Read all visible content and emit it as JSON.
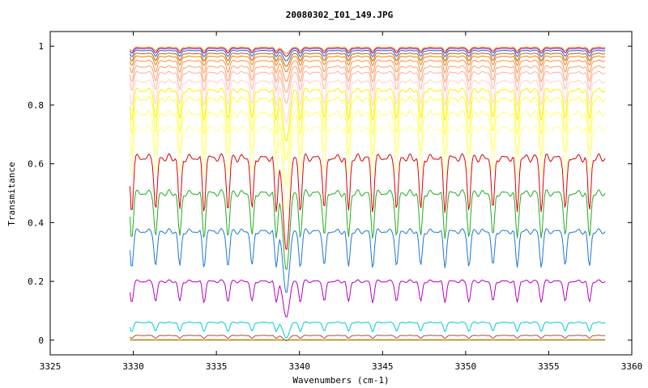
{
  "chart_data": {
    "type": "line",
    "title": "20080302_I01_149.JPG",
    "xlabel": "Wavenumbers (cm-1)",
    "ylabel": "Transmitance",
    "xlim": [
      3325,
      3360
    ],
    "ylim": [
      -0.05,
      1.05
    ],
    "x_ticks": [
      "3325",
      "3330",
      "3335",
      "3340",
      "3345",
      "3350",
      "3355",
      "3360"
    ],
    "y_ticks": [
      "0",
      "0.2",
      "0.4",
      "0.6",
      "0.8",
      "1"
    ],
    "grid": false,
    "legend": "none",
    "x_range_data": [
      3329.8,
      3358.4
    ],
    "series": [
      {
        "color": "#2e8b57",
        "baseline": 0.0,
        "depth": 0.0
      },
      {
        "color": "#ff7f00",
        "baseline": 0.002,
        "depth": 0.001
      },
      {
        "color": "#a0522d",
        "baseline": 0.016,
        "depth": 0.01
      },
      {
        "color": "#00cccc",
        "baseline": 0.06,
        "depth": 0.03
      },
      {
        "color": "#b000c0",
        "baseline": 0.2,
        "depth": 0.07
      },
      {
        "color": "#1f77d4",
        "baseline": 0.37,
        "depth": 0.12
      },
      {
        "color": "#22aa22",
        "baseline": 0.5,
        "depth": 0.15
      },
      {
        "color": "#dd0000",
        "baseline": 0.62,
        "depth": 0.18
      },
      {
        "color": "#ffff99",
        "baseline": 0.72,
        "depth": 0.16
      },
      {
        "color": "#ffff66",
        "baseline": 0.77,
        "depth": 0.14
      },
      {
        "color": "#ffff33",
        "baseline": 0.82,
        "depth": 0.12
      },
      {
        "color": "#ffee00",
        "baseline": 0.85,
        "depth": 0.1
      },
      {
        "color": "#ffd0d0",
        "baseline": 0.88,
        "depth": 0.08
      },
      {
        "color": "#ffb0a0",
        "baseline": 0.91,
        "depth": 0.06
      },
      {
        "color": "#ffa070",
        "baseline": 0.93,
        "depth": 0.05
      },
      {
        "color": "#ff9040",
        "baseline": 0.95,
        "depth": 0.04
      },
      {
        "color": "#e08020",
        "baseline": 0.965,
        "depth": 0.03
      },
      {
        "color": "#c06000",
        "baseline": 0.975,
        "depth": 0.025
      },
      {
        "color": "#2060c0",
        "baseline": 0.985,
        "depth": 0.02
      },
      {
        "color": "#8000a0",
        "baseline": 0.992,
        "depth": 0.015
      },
      {
        "color": "#ff8000",
        "baseline": 0.996,
        "depth": 0.012
      }
    ]
  }
}
